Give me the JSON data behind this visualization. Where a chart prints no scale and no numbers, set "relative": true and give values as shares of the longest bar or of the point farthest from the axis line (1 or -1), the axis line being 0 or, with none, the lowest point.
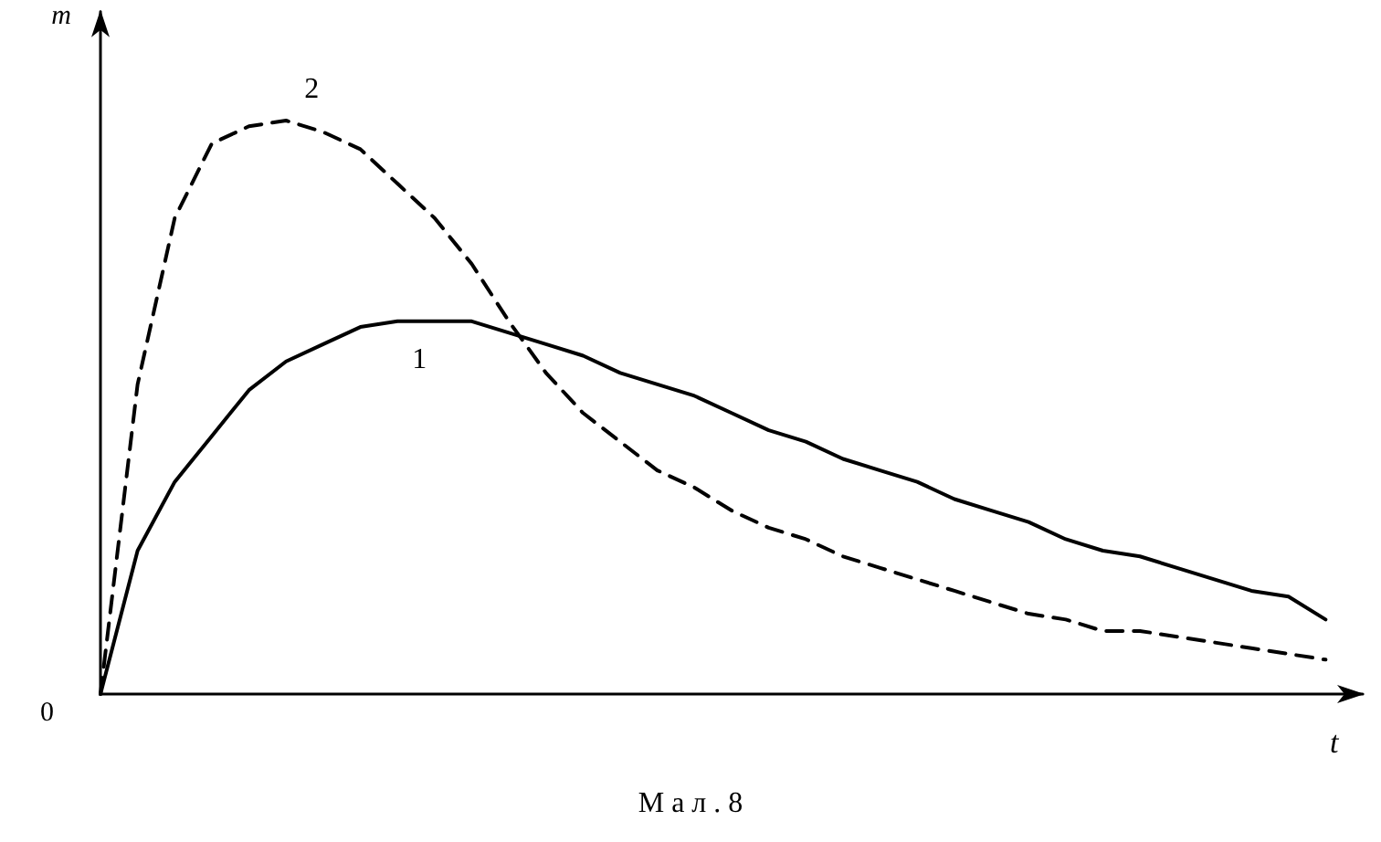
{
  "chart_data": {
    "type": "line",
    "relative": true,
    "xlabel": "t",
    "ylabel": "m",
    "legend": false,
    "grid": false,
    "marker": "none",
    "categories": [
      null,
      null,
      null,
      null,
      null,
      null,
      null,
      null,
      null,
      null,
      null,
      null,
      null,
      null,
      null,
      null,
      null,
      null,
      null,
      null,
      null,
      null,
      null,
      null,
      null,
      null,
      null,
      null,
      null,
      null,
      null,
      null,
      null,
      null,
      null
    ],
    "series": [
      {
        "name": "1",
        "color": "#000000",
        "line_style": "solid",
        "values": [
          0,
          0.25,
          0.37,
          0.45,
          0.53,
          0.58,
          0.61,
          0.64,
          0.65,
          0.65,
          0.65,
          0.63,
          0.61,
          0.59,
          0.56,
          0.54,
          0.52,
          0.49,
          0.46,
          0.44,
          0.41,
          0.39,
          0.37,
          0.34,
          0.32,
          0.3,
          0.27,
          0.25,
          0.24,
          0.22,
          0.2,
          0.18,
          0.17,
          0.13,
          null
        ]
      },
      {
        "name": "2",
        "color": "#000000",
        "line_style": "dashed",
        "values": [
          0,
          0.54,
          0.83,
          0.96,
          0.99,
          1,
          0.98,
          0.95,
          0.89,
          0.83,
          0.75,
          0.65,
          0.56,
          0.49,
          0.44,
          0.39,
          0.36,
          0.32,
          0.29,
          0.27,
          0.24,
          0.22,
          0.2,
          0.18,
          0.16,
          0.14,
          0.13,
          0.11,
          0.11,
          0.1,
          0.09,
          0.08,
          0.07,
          0.06,
          null
        ]
      }
    ],
    "annotations": [
      "0",
      "М а л . 8"
    ]
  }
}
